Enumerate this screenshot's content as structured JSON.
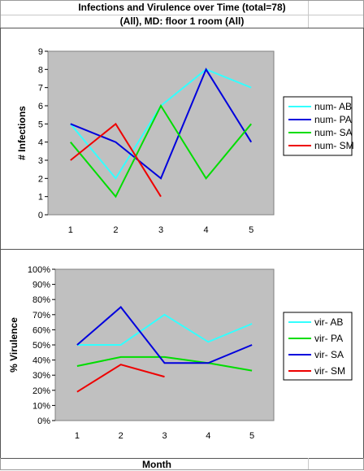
{
  "header": {
    "title": "Infections and Virulence over Time (total=78)",
    "subtitle": "(All), MD: floor 1 room (All)"
  },
  "footer": {
    "xlabel": "Month"
  },
  "chart_data": [
    {
      "type": "line",
      "ylabel": "# Infections",
      "xlabel": "",
      "categories": [
        "1",
        "2",
        "3",
        "4",
        "5"
      ],
      "ylim": [
        0,
        9
      ],
      "yticks": [
        0,
        1,
        2,
        3,
        4,
        5,
        6,
        7,
        8,
        9
      ],
      "ytick_labels": [
        "0",
        "1",
        "2",
        "3",
        "4",
        "5",
        "6",
        "7",
        "8",
        "9"
      ],
      "grid": false,
      "legend_placement": "right",
      "plot_bg": "#c0c0c0",
      "series": [
        {
          "name": "num- AB",
          "color": "#33ffff",
          "values": [
            5,
            2,
            6,
            8,
            7
          ]
        },
        {
          "name": "num- PA",
          "color": "#0000dd",
          "values": [
            5,
            4,
            2,
            8,
            4
          ]
        },
        {
          "name": "num- SA",
          "color": "#00dd00",
          "values": [
            4,
            1,
            6,
            2,
            5
          ]
        },
        {
          "name": "num- SM",
          "color": "#ee0000",
          "values": [
            3,
            5,
            1,
            null,
            null
          ]
        }
      ]
    },
    {
      "type": "line",
      "ylabel": "% Virulence",
      "xlabel": "",
      "categories": [
        "1",
        "2",
        "3",
        "4",
        "5"
      ],
      "ylim": [
        0,
        100
      ],
      "yticks": [
        0,
        10,
        20,
        30,
        40,
        50,
        60,
        70,
        80,
        90,
        100
      ],
      "ytick_labels": [
        "0%",
        "10%",
        "20%",
        "30%",
        "40%",
        "50%",
        "60%",
        "70%",
        "80%",
        "90%",
        "100%"
      ],
      "grid": false,
      "legend_placement": "right",
      "plot_bg": "#c0c0c0",
      "series": [
        {
          "name": "vir- AB",
          "color": "#33ffff",
          "values": [
            50,
            50,
            70,
            52,
            64
          ]
        },
        {
          "name": "vir- PA",
          "color": "#00dd00",
          "values": [
            36,
            42,
            42,
            38,
            33
          ]
        },
        {
          "name": "vir- SA",
          "color": "#0000dd",
          "values": [
            50,
            75,
            38,
            38,
            50
          ]
        },
        {
          "name": "vir- SM",
          "color": "#ee0000",
          "values": [
            19,
            37,
            29,
            null,
            null
          ]
        }
      ]
    }
  ]
}
